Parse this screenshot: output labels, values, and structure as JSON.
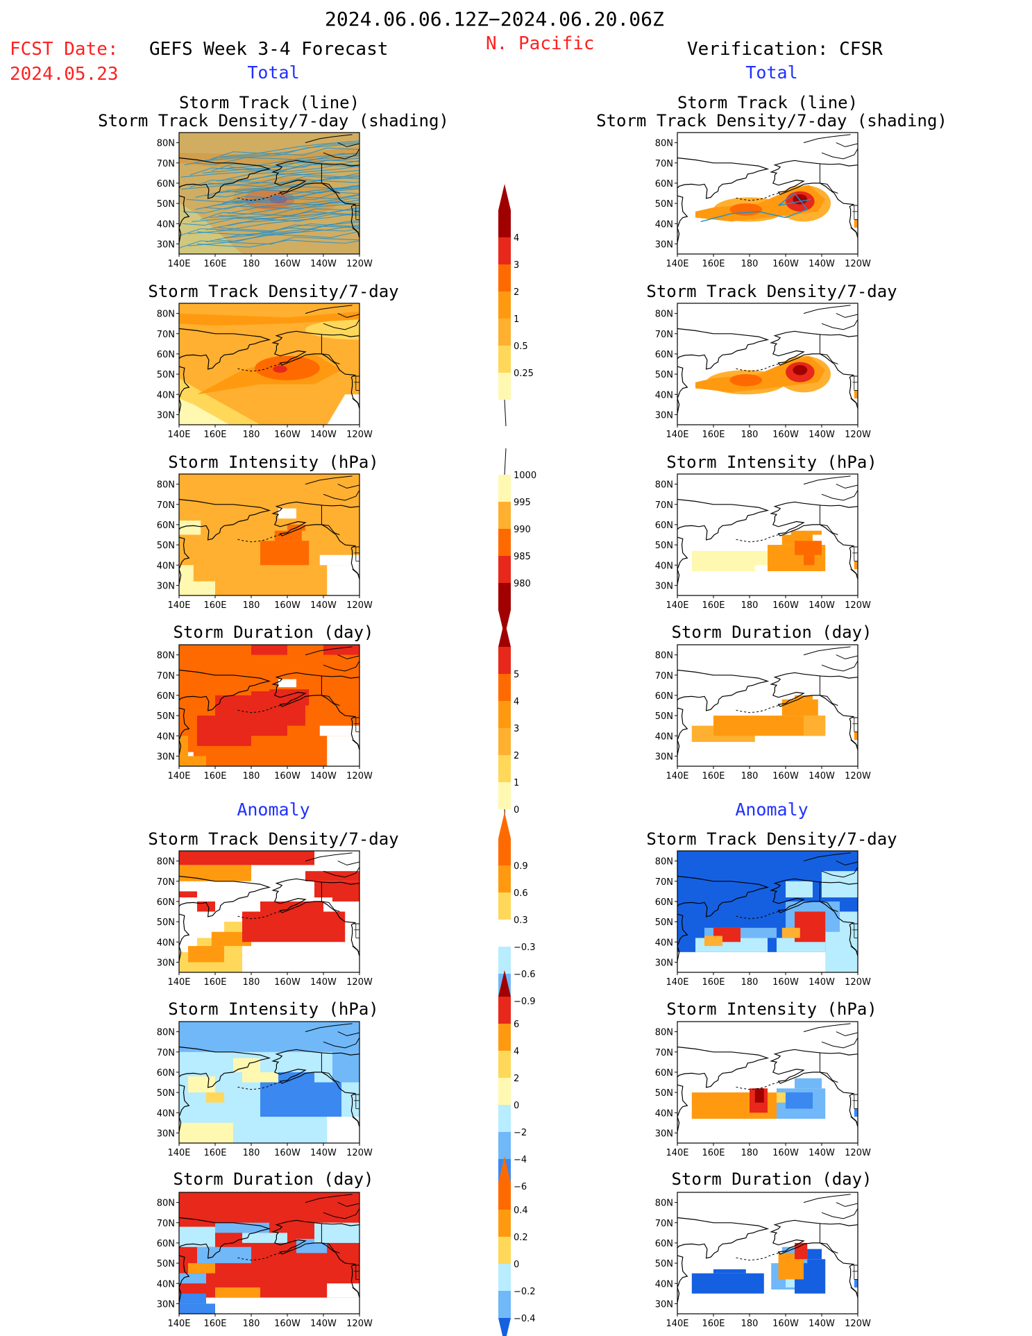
{
  "header": {
    "period": "2024.06.06.12Z−2024.06.20.06Z",
    "fcst_label": "FCST Date:",
    "fcst_date": "2024.05.23",
    "forecast_title": "GEFS Week 3-4 Forecast",
    "region": "N. Pacific",
    "verification_title": "Verification: CFSR"
  },
  "sections": {
    "total": "Total",
    "anomaly": "Anomaly"
  },
  "panel_titles": {
    "track_line": "Storm Track (line)",
    "track_shading": "Storm Track Density/7-day (shading)",
    "density": "Storm Track Density/7-day",
    "intensity": "Storm Intensity (hPa)",
    "duration": "Storm Duration (day)"
  },
  "colors": {
    "pale_yellow": "#fff8b0",
    "yellow": "#ffd85a",
    "orange_light": "#ffb030",
    "orange": "#ff9a10",
    "orange_dark": "#ff6a00",
    "red": "#e8281a",
    "dark_red": "#a00000",
    "light_blue": "#b8ecff",
    "mid_blue": "#70b8f8",
    "blue": "#3a88f0",
    "deep_blue": "#1560e0",
    "track_line": "#2090d0"
  },
  "chart_data": [
    {
      "type": "heatmap",
      "panel": "forecast-total-track",
      "title": "Storm Track (line) / Storm Track Density/7-day (shading)",
      "x_ticks": [
        "140E",
        "160E",
        "180",
        "160W",
        "140W",
        "120W"
      ],
      "y_ticks": [
        "80N",
        "70N",
        "60N",
        "50N",
        "40N",
        "30N"
      ],
      "colorbar": [
        "4",
        "3",
        "2",
        "1",
        "0.5",
        "0.25"
      ]
    },
    {
      "type": "heatmap",
      "panel": "verification-total-track",
      "title": "Storm Track (line) / Storm Track Density/7-day (shading)",
      "x_ticks": [
        "140E",
        "160E",
        "180",
        "160W",
        "140W",
        "120W"
      ],
      "y_ticks": [
        "80N",
        "70N",
        "60N",
        "50N",
        "40N",
        "30N"
      ]
    },
    {
      "type": "heatmap",
      "panel": "forecast-total-density",
      "title": "Storm Track Density/7-day",
      "colorbar": [
        "4",
        "3",
        "2",
        "1",
        "0.5",
        "0.25"
      ]
    },
    {
      "type": "heatmap",
      "panel": "verification-total-density",
      "title": "Storm Track Density/7-day"
    },
    {
      "type": "heatmap",
      "panel": "forecast-total-intensity",
      "title": "Storm Intensity (hPa)",
      "colorbar": [
        "1000",
        "995",
        "990",
        "985",
        "980"
      ]
    },
    {
      "type": "heatmap",
      "panel": "verification-total-intensity",
      "title": "Storm Intensity (hPa)"
    },
    {
      "type": "heatmap",
      "panel": "forecast-total-duration",
      "title": "Storm Duration (day)",
      "colorbar": [
        "5",
        "4",
        "3",
        "2",
        "1",
        "0"
      ]
    },
    {
      "type": "heatmap",
      "panel": "verification-total-duration",
      "title": "Storm Duration (day)"
    },
    {
      "type": "heatmap",
      "panel": "forecast-anomaly-density",
      "title": "Storm Track Density/7-day",
      "colorbar": [
        "0.9",
        "0.6",
        "0.3",
        "−0.3",
        "−0.6",
        "−0.9"
      ]
    },
    {
      "type": "heatmap",
      "panel": "verification-anomaly-density",
      "title": "Storm Track Density/7-day"
    },
    {
      "type": "heatmap",
      "panel": "forecast-anomaly-intensity",
      "title": "Storm Intensity (hPa)",
      "colorbar": [
        "6",
        "4",
        "2",
        "0",
        "−2",
        "−4",
        "−6"
      ]
    },
    {
      "type": "heatmap",
      "panel": "verification-anomaly-intensity",
      "title": "Storm Intensity (hPa)"
    },
    {
      "type": "heatmap",
      "panel": "forecast-anomaly-duration",
      "title": "Storm Duration (day)",
      "colorbar": [
        "0.4",
        "0.2",
        "0",
        "−0.2",
        "−0.4"
      ]
    },
    {
      "type": "heatmap",
      "panel": "verification-anomaly-duration",
      "title": "Storm Duration (day)"
    }
  ]
}
